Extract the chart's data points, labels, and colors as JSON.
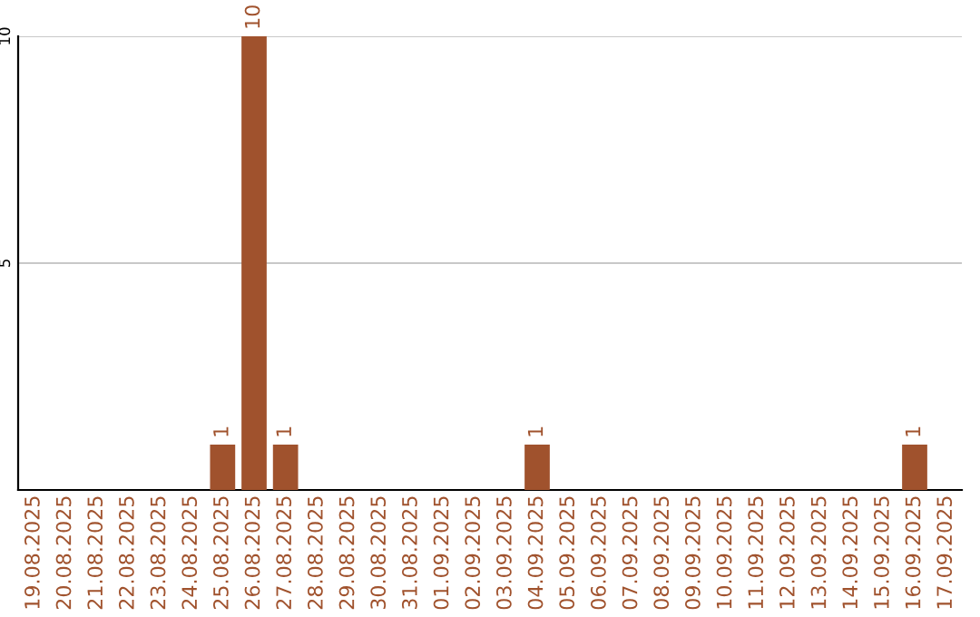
{
  "chart_data": {
    "type": "bar",
    "categories": [
      "19.08.2025",
      "20.08.2025",
      "21.08.2025",
      "22.08.2025",
      "23.08.2025",
      "24.08.2025",
      "25.08.2025",
      "26.08.2025",
      "27.08.2025",
      "28.08.2025",
      "29.08.2025",
      "30.08.2025",
      "31.08.2025",
      "01.09.2025",
      "02.09.2025",
      "03.09.2025",
      "04.09.2025",
      "05.09.2025",
      "06.09.2025",
      "07.09.2025",
      "08.09.2025",
      "09.09.2025",
      "10.09.2025",
      "11.09.2025",
      "12.09.2025",
      "13.09.2025",
      "14.09.2025",
      "15.09.2025",
      "16.09.2025",
      "17.09.2025"
    ],
    "values": [
      0,
      0,
      0,
      0,
      0,
      0,
      1,
      10,
      1,
      0,
      0,
      0,
      0,
      0,
      0,
      0,
      1,
      0,
      0,
      0,
      0,
      0,
      0,
      0,
      0,
      0,
      0,
      0,
      1,
      0
    ],
    "value_labels": [
      null,
      null,
      null,
      null,
      null,
      null,
      "1",
      "10",
      "1",
      null,
      null,
      null,
      null,
      null,
      null,
      null,
      "1",
      null,
      null,
      null,
      null,
      null,
      null,
      null,
      null,
      null,
      null,
      null,
      "1",
      null
    ],
    "color": "#a0522d",
    "ylim": [
      0,
      10
    ],
    "yticks": [
      5,
      10
    ],
    "grid": "y",
    "legend": false
  }
}
